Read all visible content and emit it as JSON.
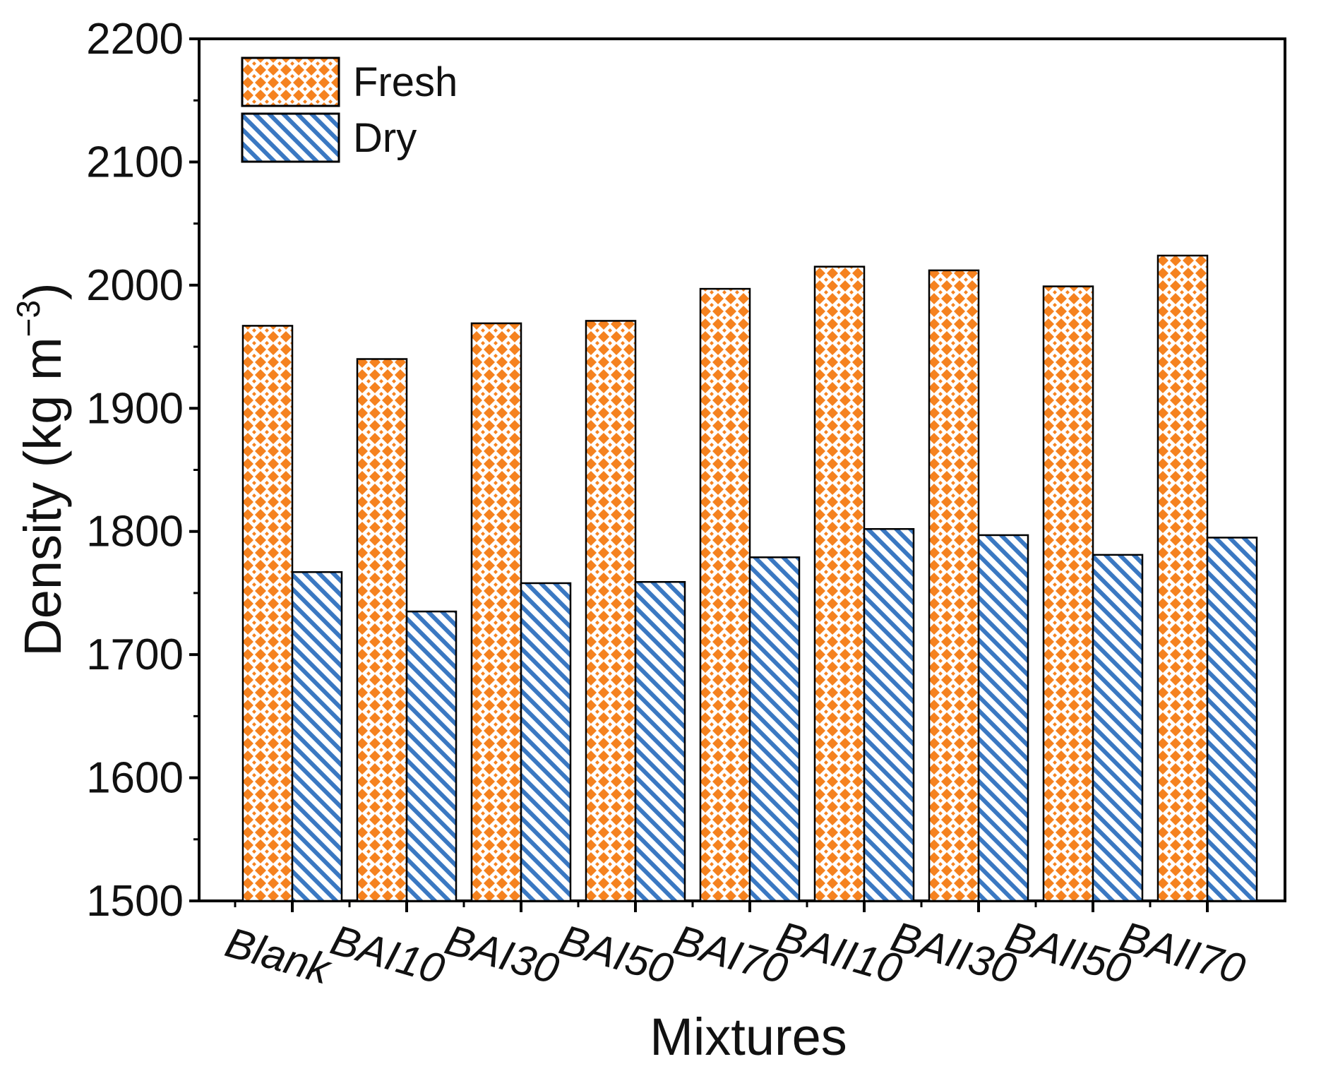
{
  "chart_data": {
    "type": "bar",
    "title": "",
    "xlabel": "Mixtures",
    "ylabel": "Density (kg m",
    "ylabel_sup": "−3",
    "ylabel_close": ")",
    "ylim": [
      1500,
      2200
    ],
    "yticks": [
      1500,
      1600,
      1700,
      1800,
      1900,
      2000,
      2100,
      2200
    ],
    "categories": [
      "Blank",
      "BAI10",
      "BAI30",
      "BAI50",
      "BAI70",
      "BAII10",
      "BAII30",
      "BAII50",
      "BAII70"
    ],
    "series": [
      {
        "name": "Fresh",
        "color": "#f5821f",
        "pattern": "crosshatch",
        "values": [
          1967,
          1940,
          1969,
          1971,
          1997,
          2015,
          2012,
          1999,
          2024
        ]
      },
      {
        "name": "Dry",
        "color": "#3a78c2",
        "pattern": "diagonal",
        "values": [
          1767,
          1735,
          1758,
          1759,
          1779,
          1802,
          1797,
          1781,
          1795
        ]
      }
    ],
    "legend_position": "top-left",
    "grid": false
  }
}
